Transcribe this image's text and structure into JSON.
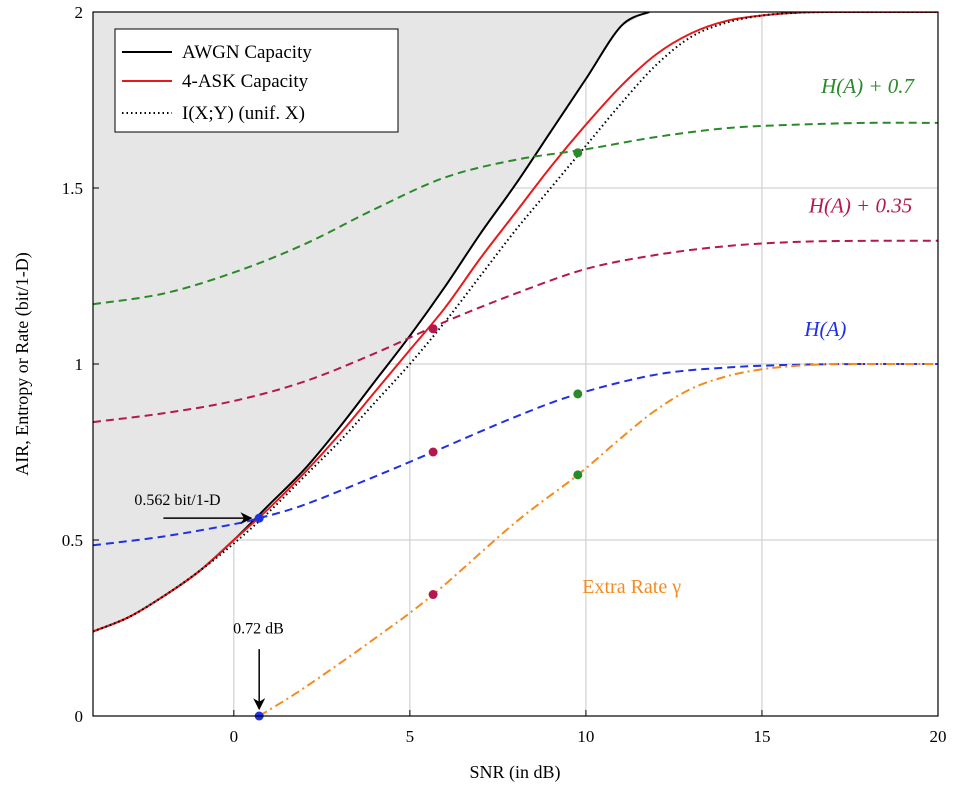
{
  "chart_data": {
    "type": "line",
    "xlabel": "SNR (in dB)",
    "ylabel": "AIR, Entropy or Rate (bit/1-D)",
    "xlim": [
      -4,
      20
    ],
    "ylim": [
      0,
      2
    ],
    "xticks": [
      0,
      5,
      10,
      15,
      20
    ],
    "yticks": [
      0,
      0.5,
      1,
      1.5,
      2
    ],
    "xtick_labels": [
      "0",
      "5",
      "10",
      "15",
      "20"
    ],
    "ytick_labels": [
      "0",
      "0.5",
      "1",
      "1.5",
      "2"
    ],
    "grid": true,
    "legend_position": "top-left",
    "legend": [
      "AWGN Capacity",
      "4-ASK Capacity",
      "I(X;Y) (unif. X)"
    ],
    "series": [
      {
        "name": "AWGN Capacity",
        "style": "solid",
        "color": "#000000",
        "x": [
          -4,
          -3,
          -2,
          -1,
          0,
          1,
          2,
          3,
          4,
          5,
          6,
          7,
          8,
          9,
          10,
          11,
          11.8
        ],
        "y": [
          0.24,
          0.28,
          0.34,
          0.41,
          0.5,
          0.6,
          0.7,
          0.82,
          0.95,
          1.08,
          1.22,
          1.37,
          1.51,
          1.66,
          1.81,
          1.96,
          2.0
        ]
      },
      {
        "name": "4-ASK Capacity",
        "style": "solid",
        "color": "#e8191a",
        "x": [
          -4,
          -3,
          -2,
          -1,
          0,
          1,
          2,
          3,
          4,
          5,
          6,
          7,
          8,
          9,
          10,
          11,
          12,
          13,
          14,
          15,
          16,
          17,
          18,
          20
        ],
        "y": [
          0.24,
          0.28,
          0.34,
          0.41,
          0.5,
          0.59,
          0.69,
          0.8,
          0.92,
          1.04,
          1.16,
          1.3,
          1.43,
          1.56,
          1.68,
          1.79,
          1.88,
          1.94,
          1.975,
          1.99,
          1.998,
          2.0,
          2.0,
          2.0
        ]
      },
      {
        "name": "I(X;Y) (unif. X)",
        "style": "dotted",
        "color": "#000000",
        "x": [
          -4,
          -3,
          -2,
          -1,
          0,
          1,
          2,
          3,
          4,
          5,
          6,
          7,
          8,
          9,
          10,
          11,
          12,
          13,
          14,
          15,
          16,
          17,
          18,
          20
        ],
        "y": [
          0.24,
          0.28,
          0.34,
          0.41,
          0.49,
          0.58,
          0.68,
          0.78,
          0.89,
          1.0,
          1.12,
          1.25,
          1.38,
          1.5,
          1.62,
          1.74,
          1.85,
          1.93,
          1.97,
          1.99,
          1.998,
          2.0,
          2.0,
          2.0
        ]
      },
      {
        "name": "H(A) + 0.7",
        "style": "dashed",
        "color": "#2a8a2a",
        "x": [
          -4,
          -2,
          0,
          2,
          4,
          6,
          8,
          10,
          12,
          14,
          16,
          18,
          20
        ],
        "y": [
          1.17,
          1.2,
          1.26,
          1.34,
          1.44,
          1.53,
          1.58,
          1.61,
          1.645,
          1.67,
          1.68,
          1.685,
          1.685
        ]
      },
      {
        "name": "H(A) + 0.35",
        "style": "dashed",
        "color": "#b5184f",
        "x": [
          -4,
          -2,
          0,
          2,
          4,
          6,
          8,
          10,
          12,
          14,
          16,
          18,
          20
        ],
        "y": [
          0.835,
          0.86,
          0.895,
          0.95,
          1.03,
          1.12,
          1.2,
          1.27,
          1.31,
          1.335,
          1.347,
          1.35,
          1.35
        ]
      },
      {
        "name": "H(A)",
        "style": "dashed",
        "color": "#1f31e0",
        "x": [
          -4,
          -2,
          0,
          0.72,
          2,
          4,
          5.66,
          8,
          9.77,
          12,
          14,
          16,
          18,
          20
        ],
        "y": [
          0.485,
          0.51,
          0.545,
          0.562,
          0.6,
          0.68,
          0.75,
          0.85,
          0.915,
          0.97,
          0.99,
          0.998,
          1.0,
          1.0
        ]
      },
      {
        "name": "Extra Rate γ",
        "style": "dashdot",
        "color": "#f58b1f",
        "x": [
          0.72,
          2,
          4,
          5.66,
          8,
          9.77,
          11,
          12,
          13,
          14,
          15,
          16,
          17,
          18,
          20
        ],
        "y": [
          0,
          0.08,
          0.22,
          0.345,
          0.55,
          0.685,
          0.79,
          0.87,
          0.93,
          0.965,
          0.985,
          0.995,
          1.0,
          1.0,
          1.0
        ]
      }
    ],
    "markers": [
      {
        "x": 0.72,
        "y": 0.562,
        "color": "#1f31e0"
      },
      {
        "x": 0.72,
        "y": 0.0,
        "color": "#1f31e0"
      },
      {
        "x": 5.66,
        "y": 1.1,
        "color": "#b5184f"
      },
      {
        "x": 5.66,
        "y": 0.75,
        "color": "#b5184f"
      },
      {
        "x": 5.66,
        "y": 0.345,
        "color": "#b5184f"
      },
      {
        "x": 9.77,
        "y": 1.6,
        "color": "#2a8a2a"
      },
      {
        "x": 9.77,
        "y": 0.915,
        "color": "#2a8a2a"
      },
      {
        "x": 9.77,
        "y": 0.685,
        "color": "#2a8a2a"
      }
    ],
    "series_labels": [
      {
        "text": "H(A) + 0.7",
        "x": 18.0,
        "y": 1.77,
        "color": "#2a8a2a"
      },
      {
        "text": "H(A) + 0.35",
        "x": 17.8,
        "y": 1.43,
        "color": "#b5184f"
      },
      {
        "text": "H(A)",
        "x": 16.8,
        "y": 1.08,
        "color": "#1f31e0"
      },
      {
        "text": "Extra Rate γ",
        "x": 11.3,
        "y": 0.35,
        "color": "#f58b1f"
      }
    ],
    "annotations": [
      {
        "text": "0.562 bit/1-D",
        "x": -1.6,
        "y": 0.6
      },
      {
        "text": "0.72 dB",
        "x": 0.7,
        "y": 0.235
      }
    ]
  }
}
